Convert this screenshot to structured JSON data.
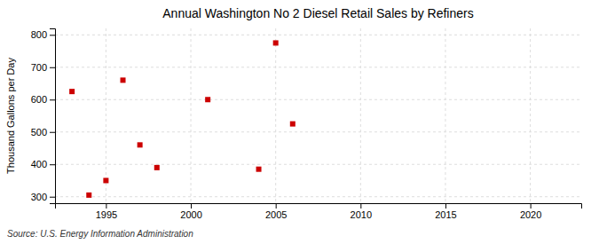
{
  "chart_data": {
    "type": "scatter",
    "title": "Annual Washington No 2 Diesel Retail Sales by Refiners",
    "ylabel": "Thousand Gallons per Day",
    "annotations": [
      "Source: U.S. Energy Information Administration"
    ],
    "x": [
      1993,
      1994,
      1995,
      1996,
      1997,
      1998,
      2001,
      2004,
      2005,
      2006
    ],
    "values": [
      625,
      305,
      350,
      660,
      460,
      390,
      600,
      385,
      775,
      525
    ],
    "color": "#cc0000",
    "marker": "square",
    "xlim": [
      1992,
      2023
    ],
    "ylim": [
      280,
      820
    ],
    "xticks": [
      1995,
      2000,
      2005,
      2010,
      2015,
      2020
    ],
    "yticks": [
      300,
      400,
      500,
      600,
      700,
      800
    ],
    "grid": true
  }
}
